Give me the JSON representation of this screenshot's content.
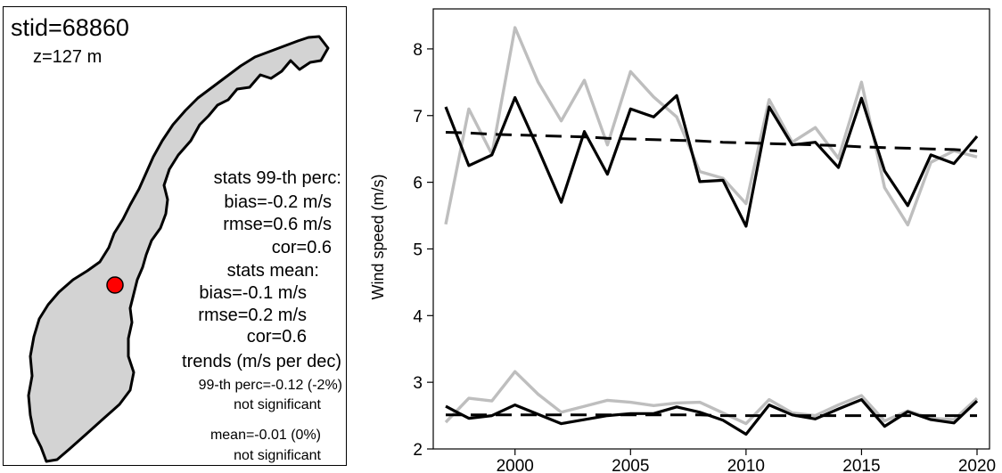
{
  "map_panel": {
    "station": "stid=68860",
    "elevation": "z=127 m",
    "stats_p99": {
      "heading": "stats 99-th perc:",
      "bias": "bias=-0.2 m/s",
      "rmse": "rmse=0.6 m/s",
      "cor": "cor=0.6"
    },
    "stats_mean": {
      "heading": "stats mean:",
      "bias": "bias=-0.1 m/s",
      "rmse": "rmse=0.2 m/s",
      "cor": "cor=0.6"
    },
    "trends": {
      "heading": "trends (m/s per dec)",
      "p99": "99-th perc=-0.12 (-2%)",
      "p99_sig": "not significant",
      "mean": "mean=-0.01 (0%)",
      "mean_sig": "not significant"
    },
    "colors": {
      "land": "#d3d3d3",
      "station_marker": "#ff0000"
    }
  },
  "chart_data": {
    "type": "line",
    "ylabel": "Wind speed (m/s)",
    "xlabel": "",
    "xlim": [
      1997,
      2020
    ],
    "ylim": [
      2,
      8.6
    ],
    "x_ticks": [
      2000,
      2005,
      2010,
      2015,
      2020
    ],
    "y_ticks": [
      2,
      3,
      4,
      5,
      6,
      7,
      8
    ],
    "grid": false,
    "legend": "none",
    "x": [
      1997,
      1998,
      1999,
      2000,
      2001,
      2002,
      2003,
      2004,
      2005,
      2006,
      2007,
      2008,
      2009,
      2010,
      2011,
      2012,
      2013,
      2014,
      2015,
      2016,
      2017,
      2018,
      2019,
      2020
    ],
    "series": [
      {
        "color": "#bebebe",
        "style": "solid",
        "values": [
          5.37,
          7.1,
          6.42,
          8.32,
          7.5,
          6.92,
          7.53,
          6.56,
          7.66,
          7.28,
          6.98,
          6.16,
          6.06,
          5.68,
          7.24,
          6.6,
          6.82,
          6.36,
          7.5,
          5.92,
          5.36,
          6.3,
          6.47,
          6.38
        ]
      },
      {
        "color": "#000000",
        "style": "solid",
        "values": [
          7.13,
          6.25,
          6.41,
          7.27,
          6.5,
          5.7,
          6.76,
          6.12,
          7.1,
          6.98,
          7.3,
          6.01,
          6.03,
          5.34,
          7.13,
          6.56,
          6.6,
          6.22,
          7.26,
          6.17,
          5.65,
          6.41,
          6.28,
          6.69
        ]
      },
      {
        "color": "#000000",
        "style": "dashed",
        "trend": true,
        "values": [
          6.75,
          6.74,
          6.72,
          6.71,
          6.7,
          6.69,
          6.68,
          6.66,
          6.65,
          6.64,
          6.63,
          6.62,
          6.6,
          6.59,
          6.58,
          6.57,
          6.56,
          6.55,
          6.53,
          6.52,
          6.51,
          6.5,
          6.49,
          6.47
        ]
      },
      {
        "color": "#bebebe",
        "style": "solid",
        "values": [
          2.4,
          2.76,
          2.72,
          3.16,
          2.82,
          2.55,
          2.64,
          2.73,
          2.7,
          2.65,
          2.69,
          2.7,
          2.54,
          2.38,
          2.74,
          2.54,
          2.5,
          2.66,
          2.8,
          2.42,
          2.57,
          2.46,
          2.44,
          2.76
        ]
      },
      {
        "color": "#000000",
        "style": "solid",
        "values": [
          2.64,
          2.46,
          2.5,
          2.66,
          2.52,
          2.38,
          2.44,
          2.5,
          2.53,
          2.53,
          2.63,
          2.55,
          2.43,
          2.22,
          2.66,
          2.51,
          2.45,
          2.6,
          2.74,
          2.34,
          2.56,
          2.44,
          2.39,
          2.72
        ]
      },
      {
        "color": "#000000",
        "style": "dashed",
        "trend": true,
        "values": [
          2.51,
          2.51,
          2.51,
          2.51,
          2.51,
          2.51,
          2.51,
          2.51,
          2.51,
          2.51,
          2.51,
          2.51,
          2.5,
          2.5,
          2.5,
          2.5,
          2.5,
          2.5,
          2.5,
          2.5,
          2.5,
          2.5,
          2.5,
          2.5
        ]
      }
    ]
  }
}
